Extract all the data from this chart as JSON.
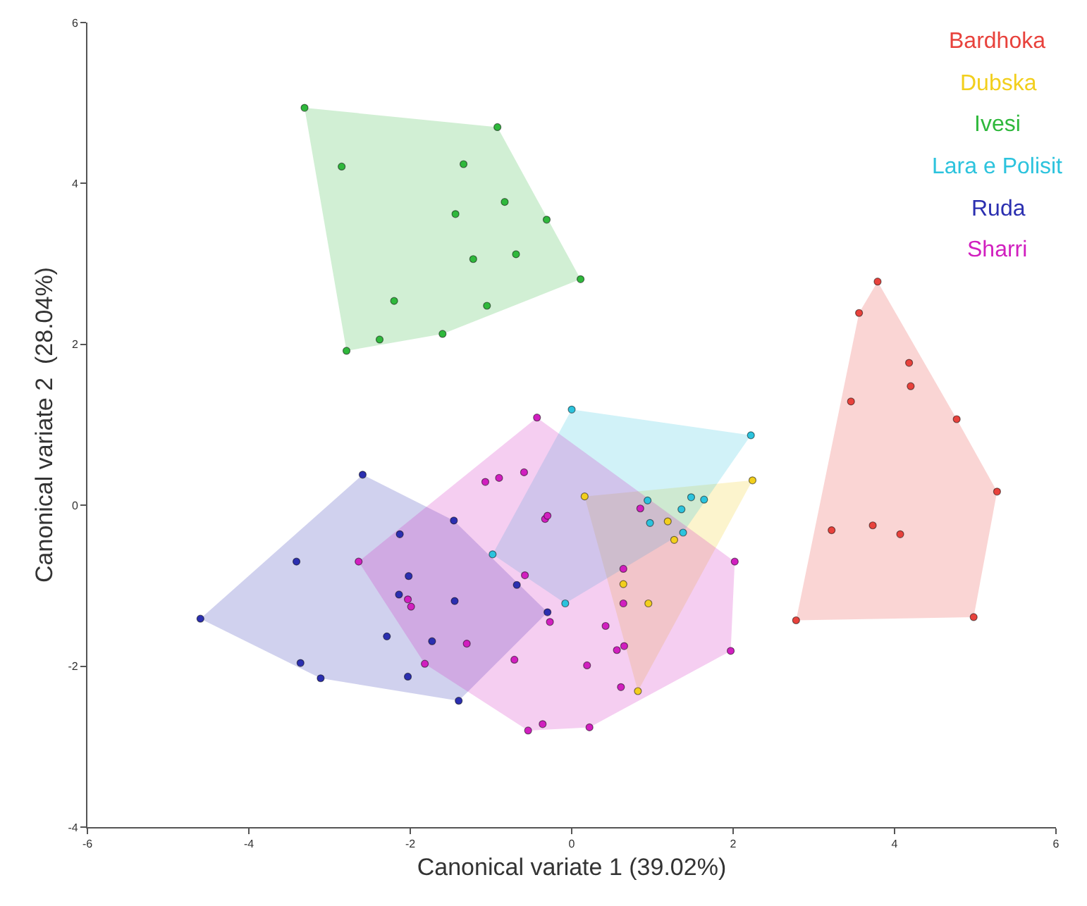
{
  "chart_data": {
    "type": "scatter",
    "xlabel": "Canonical variate 1 (39.02%)",
    "ylabel": "Canonical variate 2  (28.04%)",
    "xlim": [
      -6,
      6
    ],
    "xticks": [
      -6,
      -4,
      -2,
      0,
      2,
      4,
      6
    ],
    "ylim": [
      -4,
      6
    ],
    "yticks": [
      -4,
      -2,
      0,
      2,
      4,
      6
    ],
    "legend": "top right",
    "marker": "circle",
    "series": [
      {
        "name": "Bardhoka",
        "color": "#e8423c",
        "x": [
          3.79,
          3.56,
          4.18,
          4.2,
          3.46,
          4.77,
          5.27,
          3.22,
          3.73,
          4.07,
          2.78,
          4.98
        ],
        "values": [
          2.78,
          2.39,
          1.77,
          1.48,
          1.29,
          1.07,
          0.17,
          -0.31,
          -0.25,
          -0.36,
          -1.43,
          -1.39
        ]
      },
      {
        "name": "Dubska",
        "color": "#f2cf1d",
        "x": [
          2.24,
          0.16,
          1.19,
          1.27,
          0.64,
          0.95,
          0.82
        ],
        "values": [
          0.31,
          0.11,
          -0.2,
          -0.43,
          -0.98,
          -1.22,
          -2.31
        ]
      },
      {
        "name": "Ivesi",
        "color": "#2fb83c",
        "x": [
          -3.31,
          -0.92,
          -2.85,
          -1.34,
          -1.44,
          -0.83,
          -0.31,
          -1.22,
          -0.69,
          0.11,
          -2.2,
          -1.05,
          -1.6,
          -2.38,
          -2.79
        ],
        "values": [
          4.94,
          4.7,
          4.21,
          4.24,
          3.62,
          3.77,
          3.55,
          3.06,
          3.12,
          2.81,
          2.54,
          2.48,
          2.13,
          2.06,
          1.92
        ]
      },
      {
        "name": "Lara e Polisit",
        "color": "#2cc3dd",
        "x": [
          0.0,
          2.22,
          0.94,
          1.48,
          1.64,
          1.36,
          0.97,
          1.38,
          -0.98,
          -0.08
        ],
        "values": [
          1.19,
          0.87,
          0.06,
          0.1,
          0.07,
          -0.05,
          -0.22,
          -0.34,
          -0.61,
          -1.22
        ]
      },
      {
        "name": "Ruda",
        "color": "#2b2fb0",
        "x": [
          -2.59,
          -1.46,
          -2.13,
          -3.41,
          -2.02,
          -0.68,
          -2.14,
          -1.45,
          -0.3,
          -4.6,
          -2.29,
          -1.73,
          -3.36,
          -3.11,
          -2.03,
          -1.4
        ],
        "values": [
          0.38,
          -0.19,
          -0.36,
          -0.7,
          -0.88,
          -0.99,
          -1.11,
          -1.19,
          -1.33,
          -1.41,
          -1.63,
          -1.69,
          -1.96,
          -2.15,
          -2.13,
          -2.43
        ]
      },
      {
        "name": "Sharri",
        "color": "#d11fbf",
        "x": [
          -0.43,
          -1.07,
          -0.9,
          -0.59,
          0.85,
          -0.33,
          -0.3,
          2.02,
          -2.64,
          -0.58,
          0.64,
          0.64,
          -2.03,
          -1.99,
          -0.27,
          0.42,
          0.56,
          0.65,
          1.97,
          -0.71,
          0.19,
          -1.3,
          -1.82,
          0.61,
          -0.54,
          -0.36,
          0.22
        ],
        "values": [
          1.09,
          0.29,
          0.34,
          0.41,
          -0.04,
          -0.17,
          -0.13,
          -0.7,
          -0.7,
          -0.87,
          -0.79,
          -1.22,
          -1.17,
          -1.26,
          -1.45,
          -1.5,
          -1.8,
          -1.75,
          -1.81,
          -1.92,
          -1.99,
          -1.72,
          -1.97,
          -2.26,
          -2.8,
          -2.72,
          -2.76
        ]
      }
    ]
  }
}
